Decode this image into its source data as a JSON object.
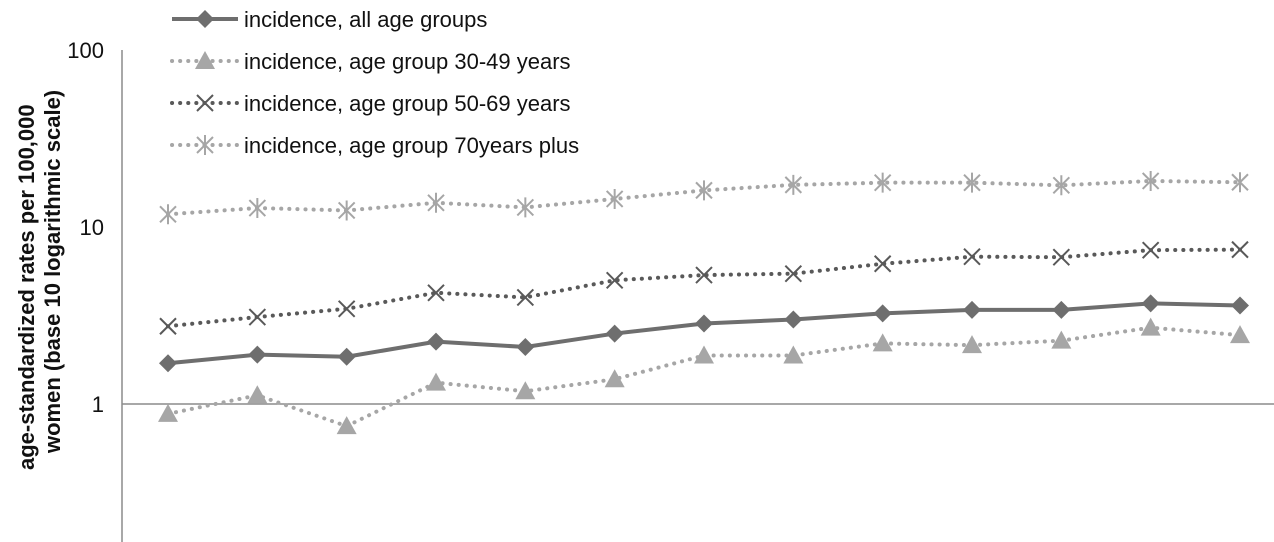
{
  "chart_data": {
    "type": "line",
    "ylabel": "age-standardized rates per 100,000 women (base 10 logarithmic scale)",
    "ylabel_lines": [
      "age-standardized rates per 100,000",
      "women (base 10 logarithmic scale)"
    ],
    "y_scale": "log10",
    "ylim": [
      0.1,
      100
    ],
    "ytick_labels": [
      "100",
      "10",
      "1"
    ],
    "ytick_values": [
      100,
      10,
      1
    ],
    "grid": false,
    "legend_position": "top-left",
    "x_count": 13,
    "series": [
      {
        "name": "incidence, all age groups",
        "marker": "diamond",
        "line": "solid",
        "color": "#6e6e6e",
        "values": [
          1.7,
          1.9,
          1.85,
          2.25,
          2.1,
          2.5,
          2.85,
          3.0,
          3.25,
          3.4,
          3.4,
          3.7,
          3.6
        ]
      },
      {
        "name": "incidence, age group 30-49 years",
        "marker": "triangle",
        "line": "dotted",
        "color": "#a6a6a6",
        "values": [
          0.88,
          1.12,
          0.75,
          1.32,
          1.18,
          1.38,
          1.88,
          1.88,
          2.2,
          2.15,
          2.28,
          2.7,
          2.45
        ]
      },
      {
        "name": "incidence, age group 50-69 years",
        "marker": "x",
        "line": "dotted",
        "color": "#595959",
        "values": [
          2.75,
          3.1,
          3.45,
          4.25,
          4.0,
          5.0,
          5.35,
          5.45,
          6.2,
          6.8,
          6.75,
          7.4,
          7.45
        ]
      },
      {
        "name": "incidence, age group 70years plus",
        "marker": "asterisk",
        "line": "dotted",
        "color": "#a6a6a6",
        "values": [
          11.8,
          12.8,
          12.4,
          13.7,
          12.9,
          14.4,
          16.1,
          17.3,
          17.8,
          17.8,
          17.2,
          18.2,
          17.9
        ]
      }
    ]
  }
}
